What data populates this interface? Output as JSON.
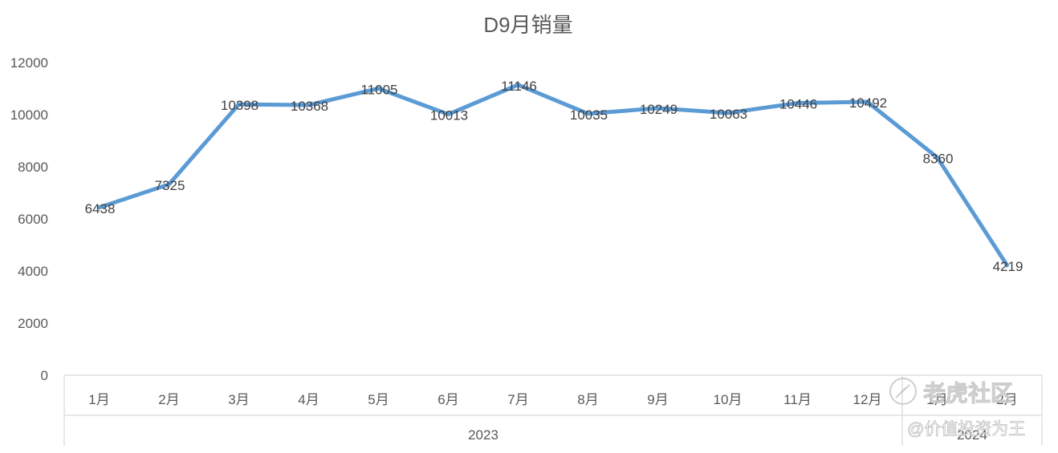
{
  "chart_data": {
    "type": "line",
    "title": "D9月销量",
    "categories": [
      "1月",
      "2月",
      "3月",
      "4月",
      "5月",
      "6月",
      "7月",
      "8月",
      "9月",
      "10月",
      "11月",
      "12月",
      "1月",
      "2月"
    ],
    "groups": [
      {
        "label": "2023",
        "count": 12
      },
      {
        "label": "2024",
        "count": 2
      }
    ],
    "series": [
      {
        "values": [
          6438,
          7325,
          10398,
          10368,
          11005,
          10013,
          11146,
          10035,
          10249,
          10063,
          10446,
          10492,
          8360,
          4219
        ]
      }
    ],
    "yticks": [
      "0",
      "2000",
      "4000",
      "6000",
      "8000",
      "10000",
      "12000"
    ],
    "ylim": [
      0,
      12000
    ],
    "grid": false,
    "legend": "none",
    "line_color": "#5b9bd5"
  },
  "watermark": {
    "text": "老虎社区",
    "sub": "@价值投资为王"
  }
}
